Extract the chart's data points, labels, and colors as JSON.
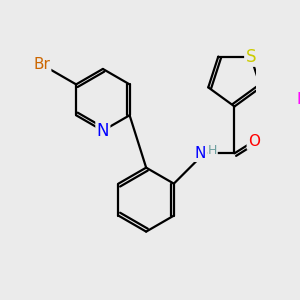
{
  "background_color": "#ebebeb",
  "atom_colors": {
    "C": "#000000",
    "H": "#6fa0a0",
    "N": "#0000ff",
    "O": "#ff0000",
    "S": "#cccc00",
    "Br": "#cc6600",
    "I": "#ff00ff"
  },
  "bond_color": "#000000",
  "bond_width": 1.6,
  "dbo": 0.055,
  "font_size": 11,
  "fig_size": [
    3.0,
    3.0
  ],
  "dpi": 100
}
